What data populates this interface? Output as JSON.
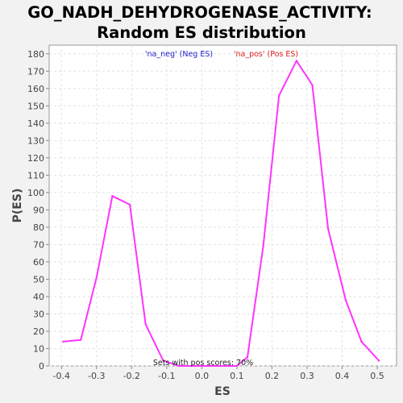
{
  "chart_data": {
    "type": "line",
    "title": [
      "GO_NADH_DEHYDROGENASE_ACTIVITY:",
      "Random ES distribution"
    ],
    "xlabel": "ES",
    "ylabel": "P(ES)",
    "xlim": [
      -0.435,
      0.555
    ],
    "ylim": [
      0,
      185
    ],
    "x_ticks": [
      -0.4,
      -0.3,
      -0.2,
      -0.1,
      0.0,
      0.1,
      0.2,
      0.3,
      0.4,
      0.5
    ],
    "x_tick_labels": [
      "-0.4",
      "-0.3",
      "-0.2",
      "-0.1",
      "0.0",
      "0.1",
      "0.2",
      "0.3",
      "0.4",
      "0.5"
    ],
    "y_ticks": [
      0,
      10,
      20,
      30,
      40,
      50,
      60,
      70,
      80,
      90,
      100,
      110,
      120,
      130,
      140,
      150,
      160,
      170,
      180
    ],
    "grid": true,
    "legend": [
      {
        "label": "'na_neg' (Neg ES)",
        "color": "#2222cc"
      },
      {
        "label": "'na_pos' (Pos ES)",
        "color": "#dd2222"
      }
    ],
    "annotation": "Sets with pos scores: 70%",
    "line_color": "#ff33ff",
    "series": [
      {
        "x": [
          -0.395,
          -0.345,
          -0.3,
          -0.255,
          -0.205,
          -0.16,
          -0.11,
          -0.065,
          -0.02,
          0.025,
          0.07,
          0.1,
          0.13,
          0.175,
          0.22,
          0.27,
          0.315,
          0.36,
          0.41,
          0.455,
          0.505
        ],
        "y": [
          14,
          15,
          51,
          98,
          93,
          24,
          3,
          0,
          0,
          0,
          0,
          0,
          5,
          69,
          156,
          176,
          162,
          79,
          38,
          14,
          3
        ]
      }
    ]
  }
}
